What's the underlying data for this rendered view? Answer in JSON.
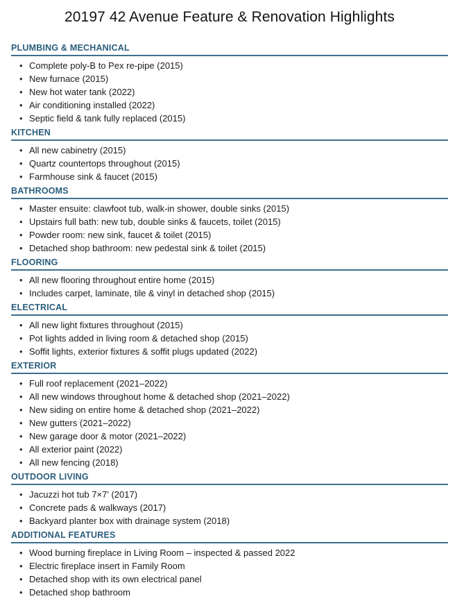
{
  "page": {
    "title": "20197 42 Avenue Feature & Renovation Highlights"
  },
  "colors": {
    "heading_text": "#2a5d7c",
    "heading_rule": "#3e6e8e",
    "body_text": "#1b1b1b",
    "background": "#ffffff"
  },
  "sections": [
    {
      "heading": "PLUMBING & MECHANICAL",
      "items": [
        "Complete poly-B to Pex re-pipe (2015)",
        "New furnace (2015)",
        "New hot water tank (2022)",
        "Air conditioning installed (2022)",
        "Septic field & tank fully replaced (2015)"
      ]
    },
    {
      "heading": "KITCHEN",
      "items": [
        "All new cabinetry (2015)",
        "Quartz countertops throughout (2015)",
        "Farmhouse sink & faucet (2015)"
      ]
    },
    {
      "heading": "BATHROOMS",
      "items": [
        "Master ensuite: clawfoot tub, walk-in shower, double sinks (2015)",
        "Upstairs full bath: new tub, double sinks & faucets, toilet (2015)",
        "Powder room: new sink, faucet & toilet (2015)",
        "Detached shop bathroom: new pedestal sink & toilet (2015)"
      ]
    },
    {
      "heading": "FLOORING",
      "items": [
        "All new flooring throughout entire home (2015)",
        "Includes carpet, laminate, tile & vinyl in detached shop (2015)"
      ]
    },
    {
      "heading": "ELECTRICAL",
      "items": [
        "All new light fixtures throughout (2015)",
        "Pot lights added in living room & detached shop (2015)",
        "Soffit lights, exterior fixtures & soffit plugs updated (2022)"
      ]
    },
    {
      "heading": "EXTERIOR",
      "items": [
        "Full roof replacement (2021–2022)",
        "All new windows throughout home & detached shop (2021–2022)",
        "New siding on entire home & detached shop (2021–2022)",
        "New gutters (2021–2022)",
        "New garage door & motor (2021–2022)",
        "All exterior paint (2022)",
        "All new fencing (2018)"
      ]
    },
    {
      "heading": "OUTDOOR LIVING",
      "items": [
        "Jacuzzi hot tub 7×7' (2017)",
        "Concrete pads & walkways (2017)",
        "Backyard planter box with drainage system (2018)"
      ]
    },
    {
      "heading": "ADDITIONAL FEATURES",
      "items": [
        "Wood burning fireplace in Living Room – inspected & passed 2022",
        "Electric fireplace insert in Family Room",
        "Detached shop with its own electrical panel",
        "Detached shop bathroom"
      ]
    }
  ]
}
